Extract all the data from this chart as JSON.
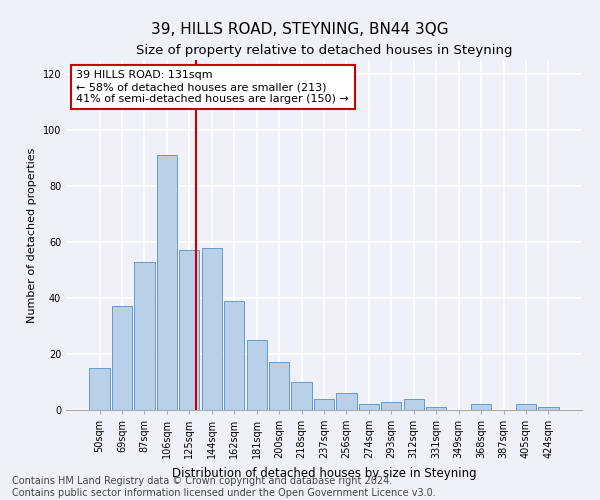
{
  "title": "39, HILLS ROAD, STEYNING, BN44 3QG",
  "subtitle": "Size of property relative to detached houses in Steyning",
  "xlabel": "Distribution of detached houses by size in Steyning",
  "ylabel": "Number of detached properties",
  "categories": [
    "50sqm",
    "69sqm",
    "87sqm",
    "106sqm",
    "125sqm",
    "144sqm",
    "162sqm",
    "181sqm",
    "200sqm",
    "218sqm",
    "237sqm",
    "256sqm",
    "274sqm",
    "293sqm",
    "312sqm",
    "331sqm",
    "349sqm",
    "368sqm",
    "387sqm",
    "405sqm",
    "424sqm"
  ],
  "values": [
    15,
    37,
    53,
    91,
    57,
    58,
    39,
    25,
    17,
    10,
    4,
    6,
    2,
    3,
    4,
    1,
    0,
    2,
    0,
    2,
    1
  ],
  "bar_color": "#b8d0e8",
  "bar_edge_color": "#6699cc",
  "vline_color": "#cc0000",
  "vline_x": 4.3,
  "annotation_text": "39 HILLS ROAD: 131sqm\n← 58% of detached houses are smaller (213)\n41% of semi-detached houses are larger (150) →",
  "annotation_box_facecolor": "#ffffff",
  "annotation_box_edgecolor": "#cc0000",
  "ylim": [
    0,
    125
  ],
  "yticks": [
    0,
    20,
    40,
    60,
    80,
    100,
    120
  ],
  "bg_color": "#eef2f8",
  "grid_color": "#ffffff",
  "footer": "Contains HM Land Registry data © Crown copyright and database right 2024.\nContains public sector information licensed under the Open Government Licence v3.0.",
  "footer_fontsize": 7,
  "title_fontsize": 11,
  "subtitle_fontsize": 9.5,
  "xlabel_fontsize": 8.5,
  "ylabel_fontsize": 8,
  "tick_fontsize": 7,
  "annotation_fontsize": 8
}
